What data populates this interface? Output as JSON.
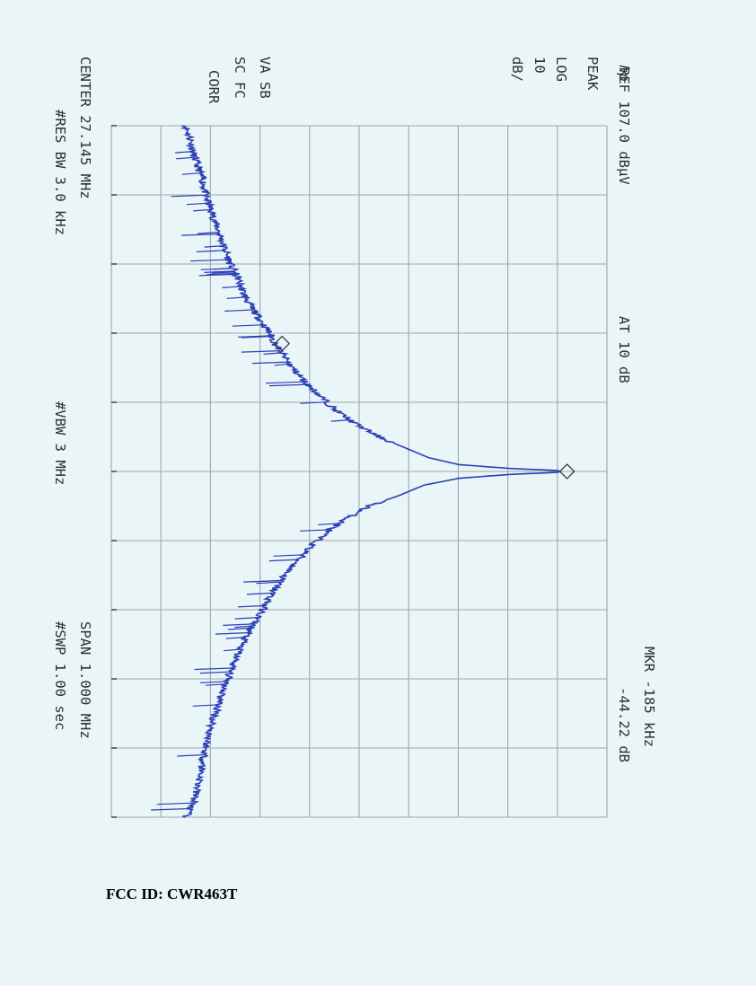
{
  "instrument": {
    "logo_glyph": "hp",
    "ref_level": "REF 107.0 dBµV",
    "attenuation": "AT 10 dB",
    "detector": "PEAK",
    "scale_type": "LOG",
    "scale_value": "10",
    "scale_unit": "dB/",
    "va_sb": "VA SB",
    "sc_fc": "SC FC",
    "corr": "CORR",
    "marker_freq": "MKR -185 kHz",
    "marker_level": "-44.22 dB",
    "center": "CENTER 27.145 MHz",
    "res_bw": "#RES BW 3.0 kHz",
    "vbw": "#VBW 3 MHz",
    "span": "SPAN 1.000 MHz",
    "sweep": "#SWP 1.00 sec"
  },
  "footer": {
    "fcc_id": "FCC ID: CWR463T"
  },
  "chart_data": {
    "type": "line",
    "orientation": "rotated-90-clockwise",
    "center_freq_mhz": 27.145,
    "span_mhz": 1.0,
    "ref_level_dbuv": 107.0,
    "db_per_div": 10,
    "x_divisions": 10,
    "y_divisions": 10,
    "trace_color": "#2b3fb5",
    "grid_color": "#9ca6b0",
    "xlim_khz": [
      -500,
      500
    ],
    "ylim_dbuv": [
      7,
      107
    ],
    "series": [
      {
        "x_khz": [
          -500,
          -480,
          -460,
          -440,
          -420,
          -400,
          -380,
          -360,
          -340,
          -320,
          -300,
          -280,
          -260,
          -240,
          -220,
          -200,
          -185,
          -170,
          -150,
          -130,
          -110,
          -90,
          -70,
          -50,
          -35,
          -20,
          -10,
          -4,
          -1.5,
          0,
          1.5,
          4,
          10,
          20,
          35,
          50,
          70,
          90,
          110,
          130,
          150,
          170,
          200,
          240,
          280,
          320,
          360,
          400,
          440,
          480,
          500
        ],
        "y_dbuv": [
          22,
          23,
          23.5,
          24.5,
          25.5,
          26,
          27,
          28,
          29,
          30,
          31,
          32.5,
          33.5,
          35,
          37,
          39,
          40,
          41.5,
          43.5,
          46,
          49,
          52,
          56,
          61,
          66,
          71,
          77,
          88,
          97,
          97.5,
          97,
          88,
          77,
          70,
          65,
          59,
          54,
          50,
          47,
          44.5,
          42,
          40,
          37.5,
          34,
          31.5,
          29.5,
          27.5,
          26,
          25,
          23.5,
          22
        ]
      }
    ],
    "markers": [
      {
        "x_khz": -185,
        "y_dbuv": 40
      },
      {
        "x_khz": 0,
        "y_dbuv": 97.5
      }
    ]
  }
}
